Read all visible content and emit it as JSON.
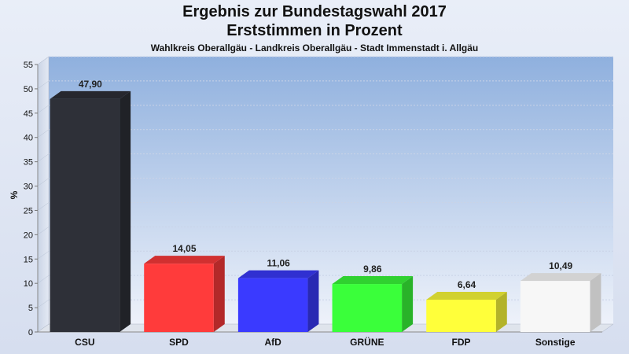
{
  "chart_data": {
    "type": "bar",
    "title": "Ergebnis zur Bundestagswahl 2017",
    "subtitle": "Erststimmen in Prozent",
    "caption": "Wahlkreis Oberallgäu - Landkreis Oberallgäu - Stadt Immenstadt i. Allgäu",
    "ylabel": "%",
    "ylim": [
      0,
      55
    ],
    "yticks": [
      0,
      5,
      10,
      15,
      20,
      25,
      30,
      35,
      40,
      45,
      50,
      55
    ],
    "categories": [
      "CSU",
      "SPD",
      "AfD",
      "GRÜNE",
      "FDP",
      "Sonstige"
    ],
    "values": [
      47.9,
      14.05,
      11.06,
      9.86,
      6.64,
      10.49
    ],
    "value_labels": [
      "47,90",
      "14,05",
      "11,06",
      "9,86",
      "6,64",
      "10,49"
    ],
    "colors": [
      "#2e3038",
      "#ff3b3b",
      "#3a3aff",
      "#3aff3a",
      "#ffff3a",
      "#f7f7f7"
    ],
    "grid": true
  }
}
